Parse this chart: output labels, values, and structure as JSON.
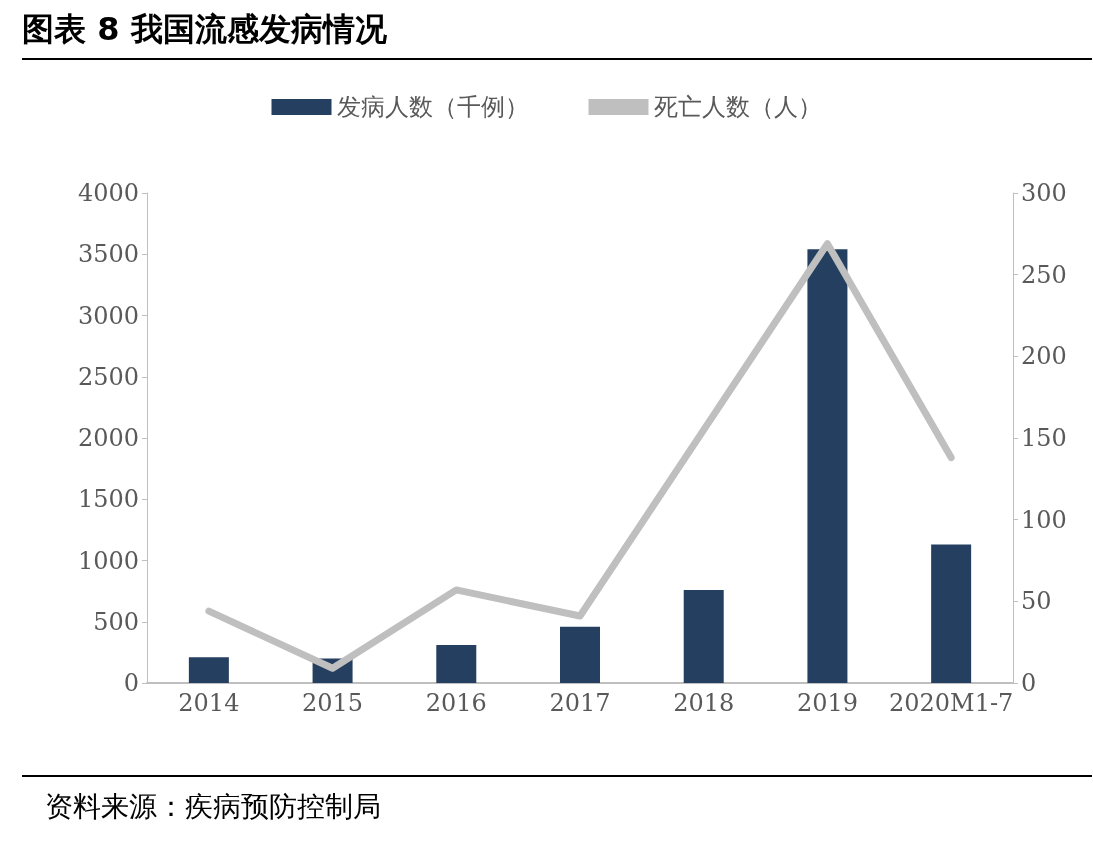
{
  "chart_data": {
    "type": "bar",
    "title": "图表 8 我国流感发病情况",
    "categories": [
      "2014",
      "2015",
      "2016",
      "2017",
      "2018",
      "2019",
      "2020M1-7"
    ],
    "series": [
      {
        "name": "发病人数（千例）",
        "color": "#243f60",
        "values": [
          210,
          200,
          310,
          460,
          760,
          3540,
          1130
        ]
      },
      {
        "name": "死亡人数（人）",
        "type": "line",
        "axis": "y2",
        "color": "#bfbfbf",
        "values": [
          44,
          9,
          57,
          41,
          155,
          269,
          138
        ]
      }
    ],
    "ylim": [
      0,
      4000
    ],
    "yticks": [
      0,
      500,
      1000,
      1500,
      2000,
      2500,
      3000,
      3500,
      4000
    ],
    "y2lim": [
      0,
      300
    ],
    "y2ticks": [
      0,
      50,
      100,
      150,
      200,
      250,
      300
    ],
    "grid": false,
    "legend": "top",
    "marker": "none",
    "line_style": "solid",
    "annotations": [
      "资料来源：疾病预防控制局"
    ]
  }
}
